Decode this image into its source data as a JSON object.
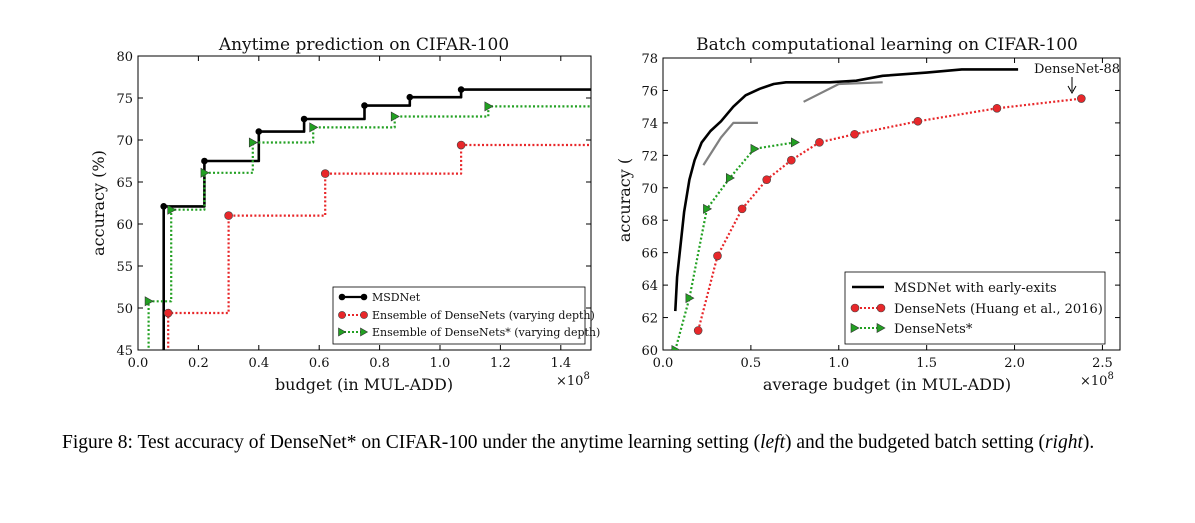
{
  "figure": {
    "caption_prefix": "Figure 8: Test accuracy of DenseNet* on CIFAR-100 under the anytime learning setting (",
    "caption_left": "left",
    "caption_mid": ") and the budgeted batch setting (",
    "caption_right": "right",
    "caption_end": ")."
  },
  "colors": {
    "black": "#000000",
    "red": "#e8272a",
    "green": "#22a022",
    "gray": "#808080"
  },
  "chart_data": [
    {
      "type": "line",
      "title": "Anytime prediction on CIFAR-100",
      "xlabel": "budget (in MUL-ADD)",
      "ylabel": "accuracy (%)",
      "x_multiplier": "×10^8",
      "xlim": [
        0.0,
        1.5
      ],
      "ylim": [
        45,
        80
      ],
      "xticks": [
        0.0,
        0.2,
        0.4,
        0.6,
        0.8,
        1.0,
        1.2,
        1.4
      ],
      "xtick_labels": [
        "0.0",
        "0.2",
        "0.4",
        "0.6",
        "0.8",
        "1.0",
        "1.2",
        "1.4"
      ],
      "yticks": [
        45,
        50,
        55,
        60,
        65,
        70,
        75,
        80
      ],
      "ytick_labels": [
        "45",
        "50",
        "55",
        "60",
        "65",
        "70",
        "75",
        "80"
      ],
      "step": true,
      "legend_position": "bottom-right",
      "series": [
        {
          "name": "MSDNet",
          "style": "solid",
          "color": "black",
          "marker": "circle",
          "x": [
            0.085,
            0.22,
            0.4,
            0.55,
            0.75,
            0.9,
            1.07
          ],
          "y": [
            62.1,
            67.5,
            71.0,
            72.5,
            74.1,
            75.1,
            76.0
          ]
        },
        {
          "name": "Ensemble of DenseNets (varying depth)",
          "style": "dotted",
          "color": "red",
          "marker": "circle",
          "x": [
            0.1,
            0.3,
            0.62,
            1.07
          ],
          "y": [
            49.4,
            61.0,
            66.0,
            69.4
          ]
        },
        {
          "name": "Ensemble of DenseNets* (varying depth)",
          "style": "dotted",
          "color": "green",
          "marker": "triangle",
          "x": [
            0.035,
            0.11,
            0.22,
            0.38,
            0.58,
            0.85,
            1.16
          ],
          "y": [
            50.8,
            61.7,
            66.1,
            69.7,
            71.5,
            72.8,
            74.0
          ]
        }
      ]
    },
    {
      "type": "line",
      "title": "Batch computational learning on CIFAR-100",
      "xlabel": "average budget (in MUL-ADD)",
      "ylabel": "accuracy (",
      "x_multiplier": "×10^8",
      "xlim": [
        0.0,
        2.6
      ],
      "ylim": [
        60,
        78
      ],
      "xticks": [
        0.0,
        0.5,
        1.0,
        1.5,
        2.0,
        2.5
      ],
      "xtick_labels": [
        "0.0",
        "0.5",
        "1.0",
        "1.5",
        "2.0",
        "2.5"
      ],
      "yticks": [
        60,
        62,
        64,
        66,
        68,
        70,
        72,
        74,
        76,
        78
      ],
      "ytick_labels": [
        "60",
        "62",
        "64",
        "66",
        "68",
        "70",
        "72",
        "74",
        "76",
        "78"
      ],
      "legend_position": "bottom-right",
      "annotation": {
        "text": "DenseNet-88",
        "x": 2.38,
        "y": 75.5
      },
      "series": [
        {
          "name": "MSDNet with early-exits",
          "style": "solid",
          "color": "black",
          "marker": "none",
          "x": [
            0.07,
            0.08,
            0.1,
            0.12,
            0.15,
            0.18,
            0.22,
            0.27,
            0.33,
            0.4,
            0.47,
            0.55,
            0.63,
            0.7,
            0.8,
            0.95,
            1.1,
            1.25,
            1.5,
            1.7,
            2.02
          ],
          "y": [
            62.4,
            64.5,
            66.5,
            68.5,
            70.5,
            71.7,
            72.8,
            73.5,
            74.1,
            75.0,
            75.7,
            76.1,
            76.4,
            76.5,
            76.5,
            76.5,
            76.6,
            76.9,
            77.1,
            77.3,
            77.3
          ]
        },
        {
          "name": "",
          "style": "solid",
          "color": "gray",
          "marker": "none",
          "x": [
            0.23,
            0.33,
            0.4,
            0.54
          ],
          "y": [
            71.4,
            73.1,
            74.0,
            74.0
          ]
        },
        {
          "name": "",
          "style": "solid",
          "color": "gray",
          "marker": "none",
          "x": [
            0.8,
            1.0,
            1.25
          ],
          "y": [
            75.3,
            76.4,
            76.5
          ]
        },
        {
          "name": "DenseNets (Huang et al., 2016)",
          "style": "dotted",
          "color": "red",
          "marker": "circle",
          "x": [
            0.2,
            0.31,
            0.45,
            0.59,
            0.73,
            0.89,
            1.09,
            1.45,
            1.9,
            2.38
          ],
          "y": [
            61.2,
            65.8,
            68.7,
            70.5,
            71.7,
            72.8,
            73.3,
            74.1,
            74.9,
            75.5
          ]
        },
        {
          "name": "DenseNets*",
          "style": "dotted",
          "color": "green",
          "marker": "triangle",
          "x": [
            0.07,
            0.15,
            0.25,
            0.38,
            0.52,
            0.75
          ],
          "y": [
            60.0,
            63.2,
            68.7,
            70.6,
            72.4,
            72.8
          ]
        }
      ]
    }
  ]
}
